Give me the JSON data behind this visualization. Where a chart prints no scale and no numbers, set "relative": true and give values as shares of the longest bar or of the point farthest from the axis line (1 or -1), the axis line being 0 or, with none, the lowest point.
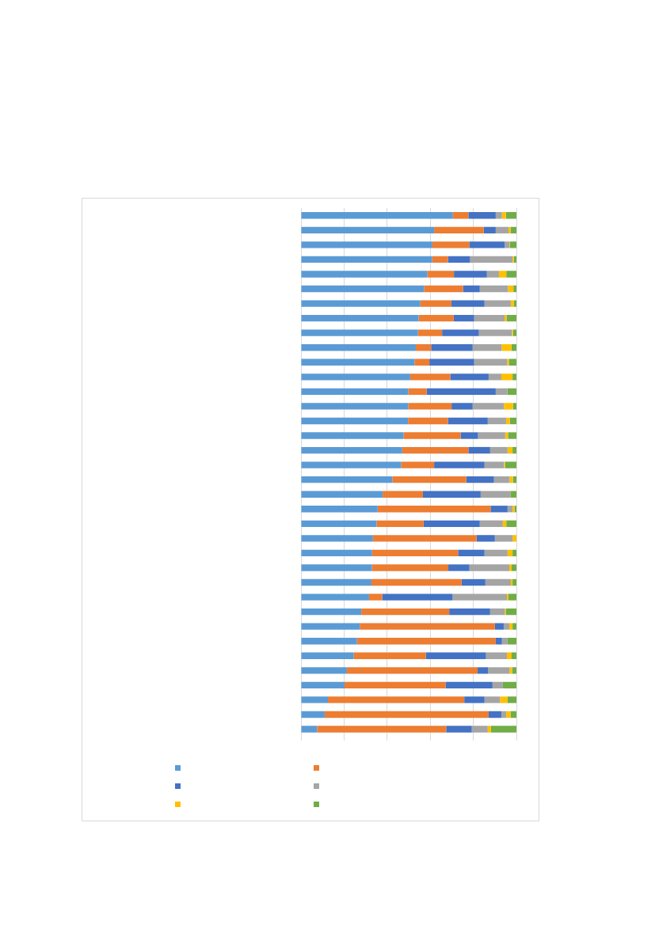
{
  "chart_data": {
    "type": "bar",
    "orientation": "horizontal",
    "stacked": true,
    "relative": true,
    "grid": "x",
    "categories": [
      null,
      null,
      null,
      null,
      null,
      null,
      null,
      null,
      null,
      null,
      null,
      null,
      null,
      null,
      null,
      null,
      null,
      null,
      null,
      null,
      null,
      null,
      null,
      null,
      null,
      null,
      null,
      null,
      null,
      null,
      null,
      null,
      null,
      null,
      null,
      null
    ],
    "series": [
      {
        "color": "#5b9bd5",
        "values": [
          0.705,
          0.618,
          0.61,
          0.609,
          0.587,
          0.571,
          0.554,
          0.546,
          0.543,
          0.533,
          0.527,
          0.507,
          0.498,
          0.498,
          0.497,
          0.476,
          0.47,
          0.465,
          0.424,
          0.379,
          0.356,
          0.351,
          0.334,
          0.33,
          0.329,
          0.327,
          0.316,
          0.28,
          0.273,
          0.26,
          0.245,
          0.213,
          0.202,
          0.125,
          0.11,
          0.075
        ]
      },
      {
        "color": "#ed7d31",
        "values": [
          0.072,
          0.23,
          0.171,
          0.073,
          0.123,
          0.181,
          0.144,
          0.163,
          0.112,
          0.071,
          0.069,
          0.186,
          0.085,
          0.201,
          0.185,
          0.265,
          0.307,
          0.153,
          0.343,
          0.187,
          0.524,
          0.218,
          0.481,
          0.399,
          0.355,
          0.418,
          0.061,
          0.408,
          0.627,
          0.644,
          0.335,
          0.607,
          0.469,
          0.633,
          0.761,
          0.599
        ]
      },
      {
        "color": "#4472c4",
        "values": [
          0.127,
          0.056,
          0.164,
          0.103,
          0.153,
          0.078,
          0.154,
          0.095,
          0.171,
          0.193,
          0.208,
          0.178,
          0.321,
          0.098,
          0.185,
          0.081,
          0.101,
          0.234,
          0.129,
          0.268,
          0.079,
          0.261,
          0.085,
          0.123,
          0.098,
          0.111,
          0.327,
          0.19,
          0.041,
          0.029,
          0.279,
          0.048,
          0.218,
          0.094,
          0.059,
          0.119
        ]
      },
      {
        "color": "#a5a5a5",
        "values": [
          0.029,
          0.059,
          0.022,
          0.197,
          0.056,
          0.131,
          0.122,
          0.141,
          0.153,
          0.134,
          0.153,
          0.059,
          0.054,
          0.145,
          0.085,
          0.126,
          0.081,
          0.09,
          0.072,
          0.138,
          0.023,
          0.107,
          0.082,
          0.107,
          0.185,
          0.118,
          0.252,
          0.069,
          0.026,
          0.026,
          0.097,
          0.1,
          0.048,
          0.072,
          0.023,
          0.074
        ]
      },
      {
        "color": "#ffc000",
        "values": [
          0.018,
          0.01,
          0.002,
          0.006,
          0.034,
          0.025,
          0.014,
          0.009,
          0.005,
          0.046,
          0.008,
          0.052,
          0,
          0.042,
          0.017,
          0.013,
          0.023,
          0.005,
          0.016,
          0,
          0.009,
          0.016,
          0.018,
          0.023,
          0.011,
          0.008,
          0.007,
          0.005,
          0.015,
          0,
          0.022,
          0.012,
          0,
          0.035,
          0.02,
          0.015
        ]
      },
      {
        "color": "#70ad47",
        "values": [
          0.049,
          0.027,
          0.031,
          0.012,
          0.047,
          0.014,
          0.012,
          0.046,
          0.016,
          0.023,
          0.035,
          0.018,
          0.042,
          0.016,
          0.031,
          0.039,
          0.018,
          0.053,
          0.016,
          0.028,
          0.009,
          0.047,
          0,
          0.018,
          0.022,
          0.018,
          0.037,
          0.048,
          0.018,
          0.041,
          0.022,
          0.02,
          0.063,
          0.041,
          0.027,
          0.118
        ]
      }
    ]
  }
}
